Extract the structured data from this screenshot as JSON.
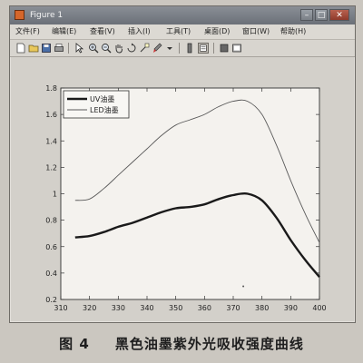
{
  "window": {
    "title": "Figure 1",
    "buttons": {
      "minimize": "–",
      "maximize": "□",
      "close": "✕"
    }
  },
  "menu": {
    "items": [
      "文件(F)",
      "编辑(E)",
      "查看(V)",
      "插入(I)",
      "工具(T)",
      "桌面(D)",
      "窗口(W)",
      "帮助(H)"
    ]
  },
  "toolbar": {
    "icons": [
      "new-file-icon",
      "open-folder-icon",
      "save-icon",
      "print-icon",
      "arrow-pointer-icon",
      "zoom-in-icon",
      "zoom-out-icon",
      "pan-hand-icon",
      "rotate-3d-icon",
      "data-cursor-icon",
      "brush-icon",
      "colorbar-icon",
      "legend-icon",
      "hide-plot-tools-icon",
      "show-plot-tools-icon"
    ]
  },
  "chart_data": {
    "type": "line",
    "title": "",
    "xlabel": "",
    "ylabel": "",
    "xlim": [
      310,
      400
    ],
    "ylim": [
      0.2,
      1.8
    ],
    "xticks": [
      310,
      320,
      330,
      340,
      350,
      360,
      370,
      380,
      390,
      400
    ],
    "yticks": [
      0.2,
      0.4,
      0.6,
      0.8,
      1,
      1.2,
      1.4,
      1.6,
      1.8
    ],
    "grid": false,
    "legend_position": "top-left",
    "series": [
      {
        "name": "UV油墨",
        "color": "#1a1a1a",
        "style": "thick",
        "x": [
          315,
          320,
          325,
          330,
          335,
          340,
          345,
          350,
          355,
          360,
          365,
          370,
          375,
          380,
          385,
          390,
          395,
          400
        ],
        "y": [
          0.67,
          0.68,
          0.71,
          0.75,
          0.78,
          0.82,
          0.86,
          0.89,
          0.9,
          0.92,
          0.96,
          0.99,
          1.0,
          0.95,
          0.82,
          0.65,
          0.5,
          0.37
        ]
      },
      {
        "name": "LED油墨",
        "color": "#5a5a5a",
        "style": "thin",
        "x": [
          315,
          320,
          325,
          330,
          335,
          340,
          345,
          350,
          355,
          360,
          365,
          370,
          375,
          380,
          385,
          390,
          395,
          400
        ],
        "y": [
          0.95,
          0.96,
          1.04,
          1.14,
          1.24,
          1.34,
          1.44,
          1.52,
          1.56,
          1.6,
          1.66,
          1.7,
          1.7,
          1.6,
          1.37,
          1.1,
          0.85,
          0.63
        ]
      }
    ]
  },
  "caption": {
    "label": "图 4",
    "text": "黑色油墨紫外光吸收强度曲线"
  }
}
